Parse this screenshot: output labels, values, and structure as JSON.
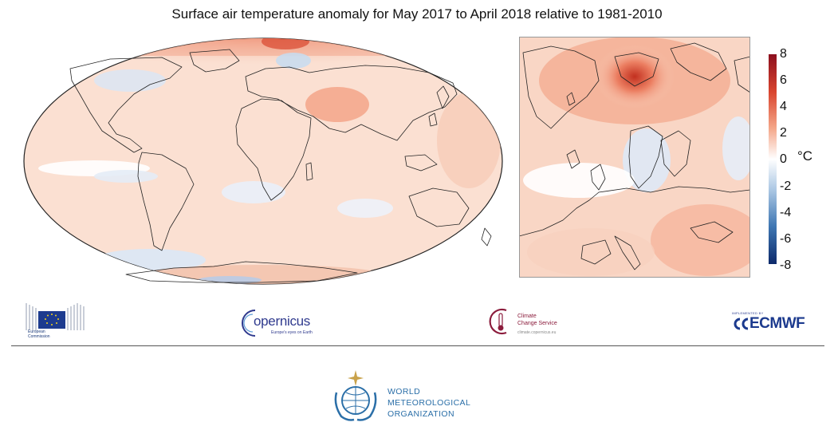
{
  "title": "Surface air temperature anomaly for May 2017 to April 2018 relative to 1981-2010",
  "colorbar": {
    "ticks": [
      "8",
      "6",
      "4",
      "2",
      "0",
      "-2",
      "-4",
      "-6",
      "-8"
    ],
    "unit": "°C",
    "colors": {
      "max": "#8c0f1e",
      "warm": "#e8705a",
      "neutral": "#ffffff",
      "cool": "#6f9fcb",
      "min": "#0d2a6b"
    }
  },
  "maps": {
    "world": {
      "icon": "world-anomaly-map"
    },
    "europe": {
      "icon": "europe-anomaly-map"
    }
  },
  "logos": {
    "european_commission": {
      "line1": "European",
      "line2": "Commission"
    },
    "copernicus": {
      "name": "opernicus",
      "tagline": "Europe's eyes on Earth"
    },
    "c3s": {
      "line1": "Climate",
      "line2": "Change Service",
      "url": "climate.copernicus.eu"
    },
    "ecmwf": {
      "implemented_by": "IMPLEMENTED BY",
      "name": "ECMWF"
    },
    "wmo": {
      "line1": "WORLD",
      "line2": "METEOROLOGICAL",
      "line3": "ORGANIZATION"
    }
  }
}
